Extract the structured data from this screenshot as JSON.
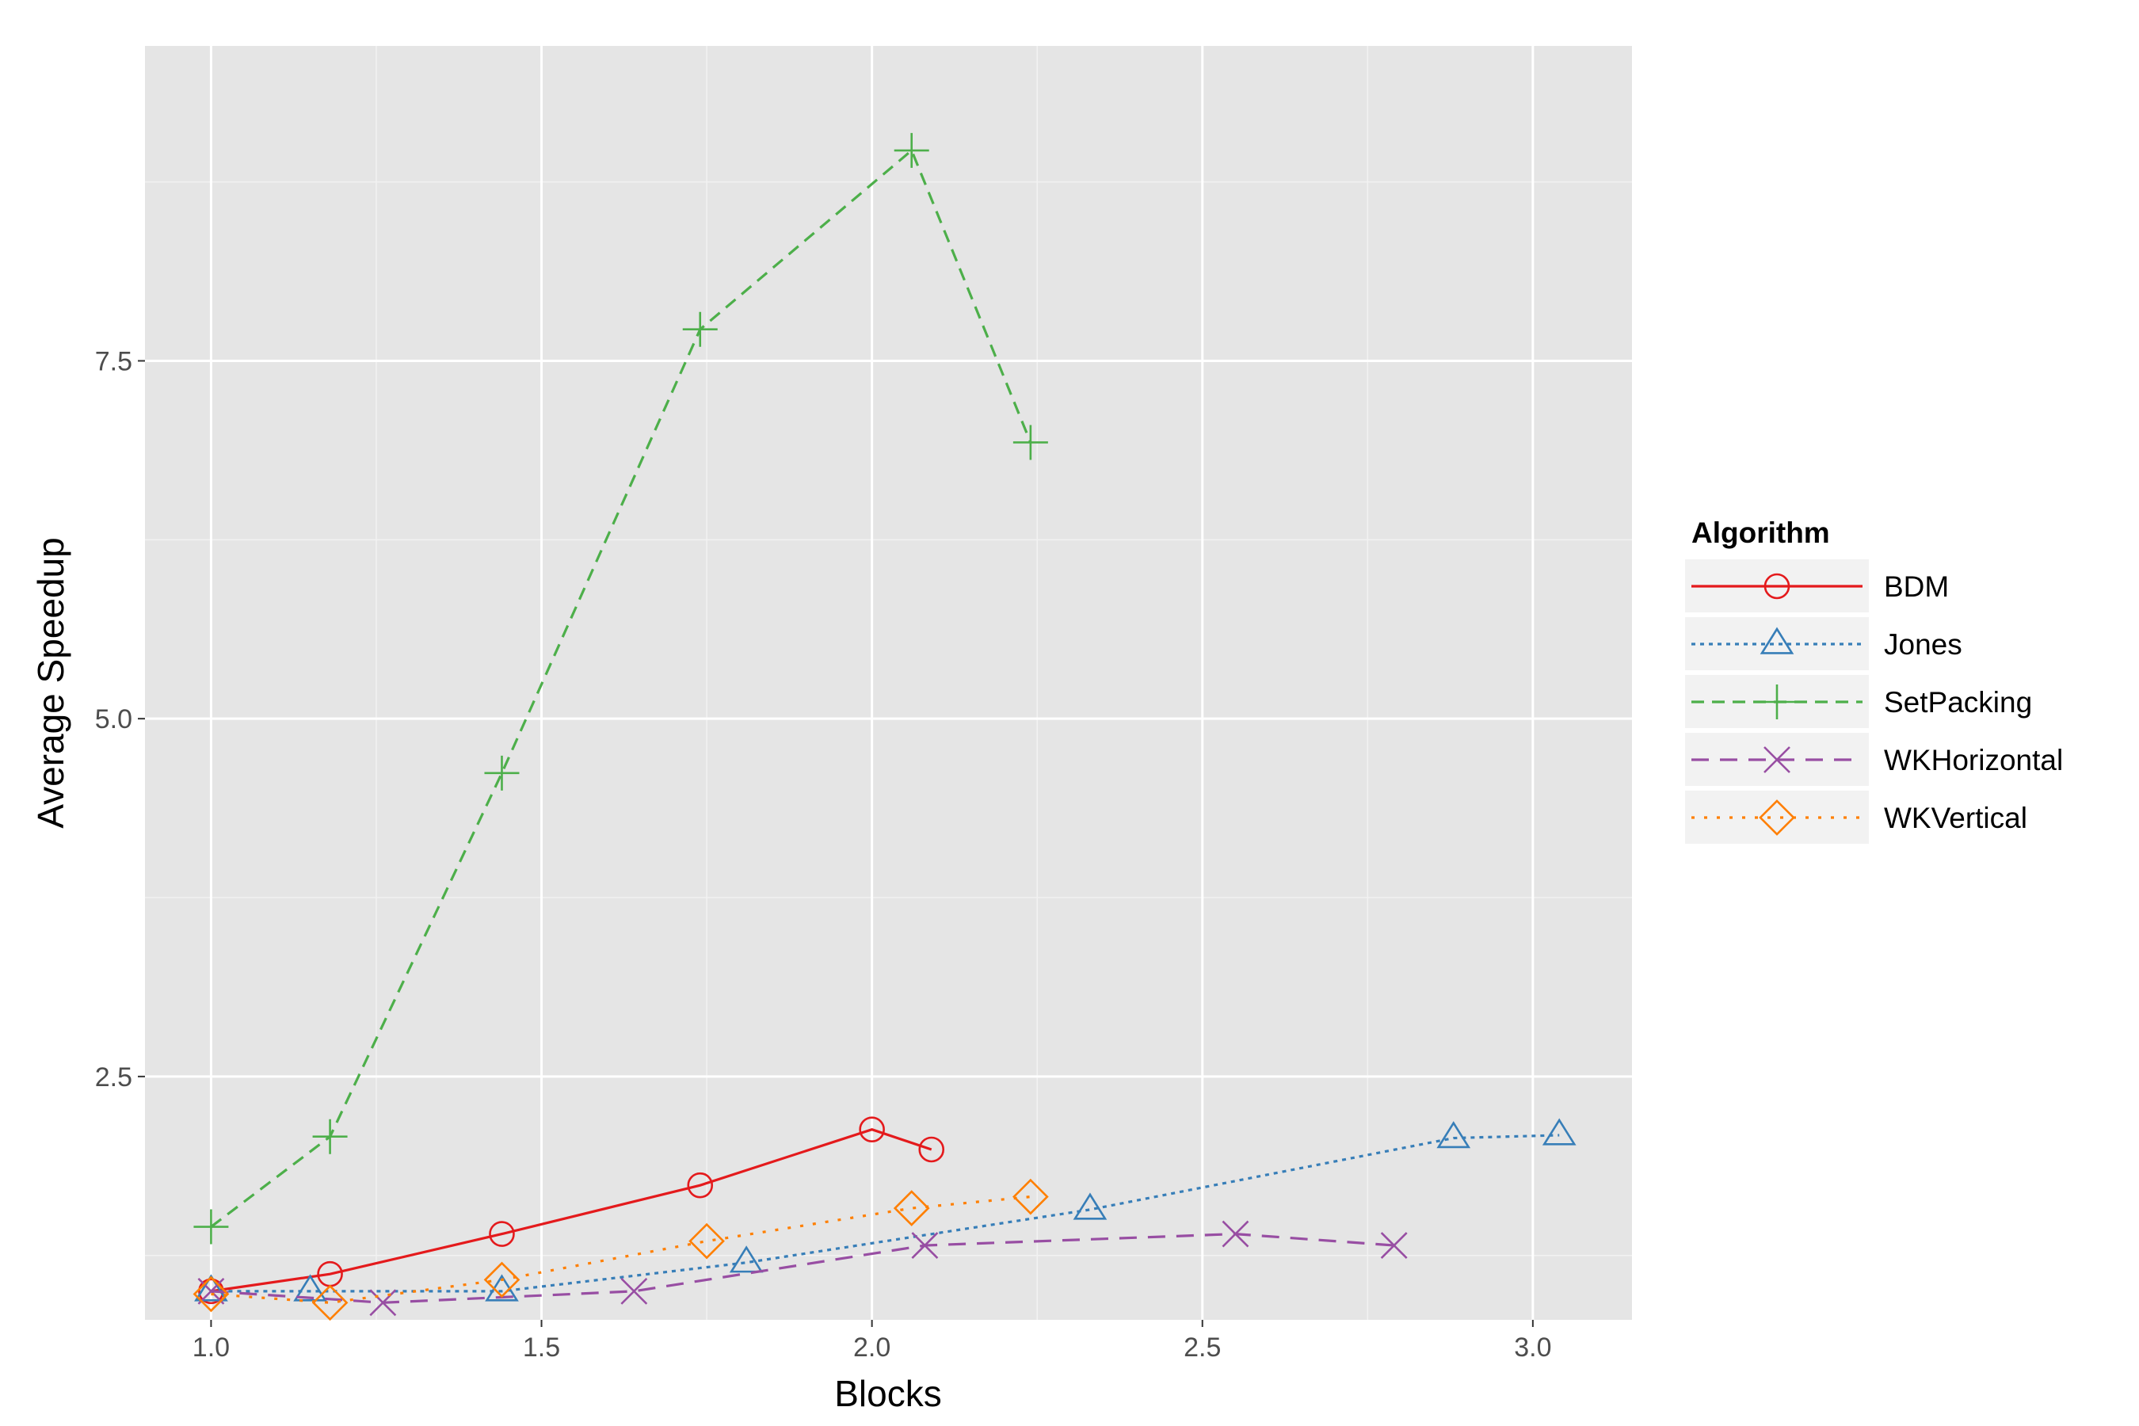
{
  "chart_data": {
    "type": "line",
    "title": "",
    "xlabel": "Blocks",
    "ylabel": "Average Speedup",
    "xlim": [
      0.9,
      3.15
    ],
    "ylim": [
      0.8,
      9.7
    ],
    "x_ticks": [
      1.0,
      1.5,
      2.0,
      2.5,
      3.0
    ],
    "x_tick_labels": [
      "1.0",
      "1.5",
      "2.0",
      "2.5",
      "3.0"
    ],
    "y_ticks": [
      2.5,
      5.0,
      7.5
    ],
    "y_tick_labels": [
      "2.5",
      "5.0",
      "7.5"
    ],
    "grid": true,
    "legend_title": "Algorithm",
    "legend_position": "right",
    "series": [
      {
        "name": "BDM",
        "color": "#e41a1c",
        "linestyle": "solid",
        "marker": "circle",
        "x": [
          1.0,
          1.18,
          1.44,
          1.74,
          2.0,
          2.09
        ],
        "y": [
          1.0,
          1.12,
          1.4,
          1.74,
          2.13,
          1.99
        ]
      },
      {
        "name": "Jones",
        "color": "#377eb8",
        "linestyle": "dotted-dense",
        "marker": "triangle",
        "x": [
          1.0,
          1.15,
          1.44,
          1.81,
          2.33,
          2.88,
          3.04
        ],
        "y": [
          1.0,
          1.0,
          1.0,
          1.2,
          1.57,
          2.07,
          2.09
        ]
      },
      {
        "name": "SetPacking",
        "color": "#4daf4a",
        "linestyle": "dashed",
        "marker": "plus",
        "x": [
          1.0,
          1.18,
          1.44,
          1.74,
          2.06,
          2.24
        ],
        "y": [
          1.45,
          2.08,
          4.62,
          7.72,
          8.97,
          6.93
        ]
      },
      {
        "name": "WKHorizontal",
        "color": "#984ea3",
        "linestyle": "long-dash",
        "marker": "x",
        "x": [
          1.0,
          1.26,
          1.64,
          2.08,
          2.55,
          2.79
        ],
        "y": [
          1.0,
          0.92,
          1.0,
          1.32,
          1.4,
          1.32
        ]
      },
      {
        "name": "WKVertical",
        "color": "#ff7f00",
        "linestyle": "dotted",
        "marker": "diamond",
        "x": [
          1.0,
          1.18,
          1.44,
          1.75,
          2.06,
          2.24
        ],
        "y": [
          0.98,
          0.92,
          1.08,
          1.35,
          1.58,
          1.66
        ]
      }
    ]
  }
}
